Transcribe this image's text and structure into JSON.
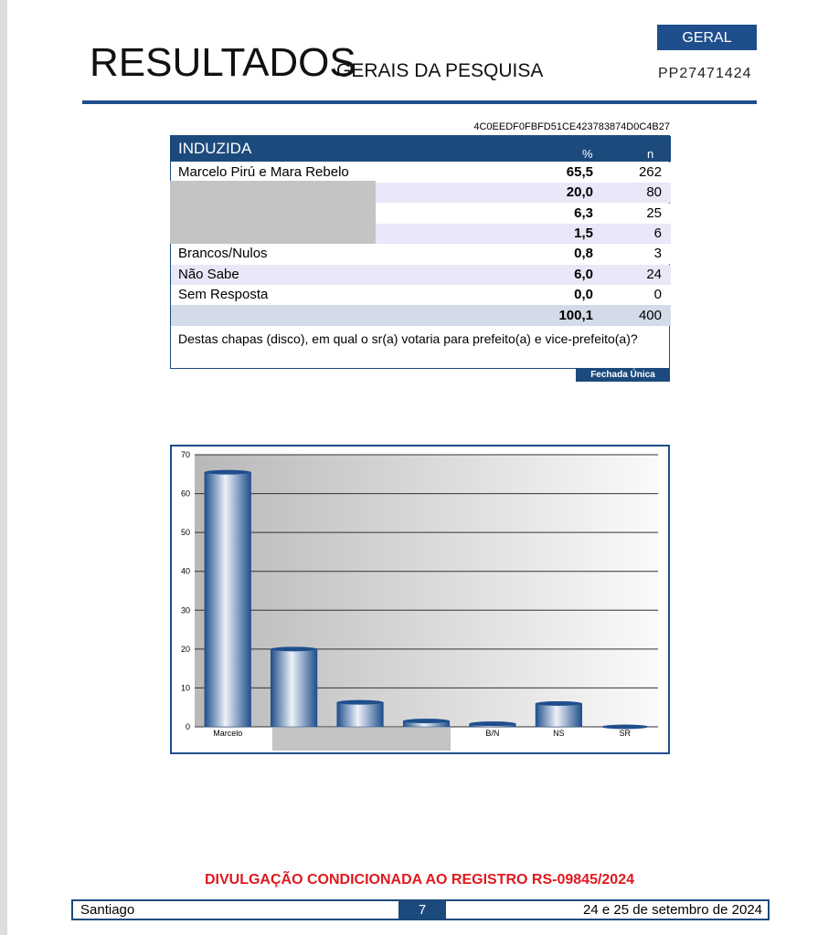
{
  "header": {
    "title": "RESULTADOS",
    "subtitle": "GERAIS DA PESQUISA",
    "badge": "GERAL",
    "code": "PP27471424"
  },
  "table": {
    "hash": "4C0EEDF0FBFD51CE423783874D0C4B27",
    "title": "INDUZIDA",
    "columns": [
      "%",
      "n"
    ],
    "rows": [
      [
        "Marcelo Pirú e Mara Rebelo",
        "65,5",
        "262"
      ],
      [
        null,
        "20,0",
        "80"
      ],
      [
        null,
        "6,3",
        "25"
      ],
      [
        null,
        "1,5",
        "6"
      ],
      [
        "Brancos/Nulos",
        "0,8",
        "3"
      ],
      [
        "Não Sabe",
        "6,0",
        "24"
      ],
      [
        "Sem Resposta",
        "0,0",
        "0"
      ]
    ],
    "total": [
      "100,1",
      "400"
    ],
    "question": "Destas chapas (disco), em qual o sr(a) votaria para prefeito(a) e vice-prefeito(a)?",
    "question_type": "Fechada Única"
  },
  "chart_data": {
    "type": "bar",
    "categories": [
      "Marcelo",
      null,
      null,
      null,
      "B/N",
      "NS",
      "SR"
    ],
    "values": [
      65.5,
      20.0,
      6.3,
      1.5,
      0.8,
      6.0,
      0.0
    ],
    "color": "#1f4e8c",
    "ylim": [
      0,
      70
    ],
    "yticks": [
      0,
      10,
      20,
      30,
      40,
      50,
      60,
      70
    ],
    "grid": true
  },
  "footer": {
    "notice": "DIVULGAÇÃO CONDICIONADA AO REGISTRO RS-09845/2024",
    "city": "Santiago",
    "page": "7",
    "date": "24 e 25 de setembro de 2024"
  }
}
